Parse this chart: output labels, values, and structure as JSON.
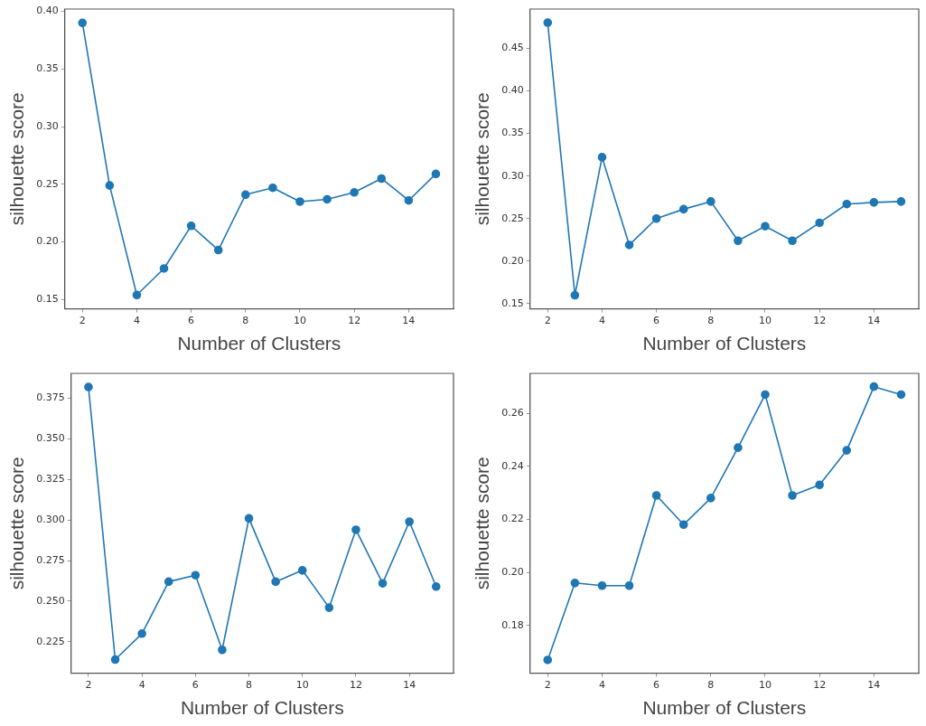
{
  "chart_data": [
    {
      "type": "line",
      "xlabel": "Number of Clusters",
      "ylabel": "silhouette score",
      "x": [
        2,
        3,
        4,
        5,
        6,
        7,
        8,
        9,
        10,
        11,
        12,
        13,
        14,
        15
      ],
      "values": [
        0.39,
        0.249,
        0.154,
        0.177,
        0.214,
        0.193,
        0.241,
        0.247,
        0.235,
        0.237,
        0.243,
        0.255,
        0.236,
        0.259
      ],
      "color": "#1f77b4",
      "marker": "circle",
      "xlim": [
        1.35,
        15.65
      ],
      "ylim": [
        0.142,
        0.402
      ],
      "xticks": [
        2,
        4,
        6,
        8,
        10,
        12,
        14
      ],
      "yticks": [
        0.15,
        {
          "value": 0.2,
          "label": "0.20"
        },
        0.25,
        {
          "value": 0.3,
          "label": "0.30"
        },
        0.35,
        {
          "value": 0.4,
          "label": "0.40"
        }
      ],
      "grid": false
    },
    {
      "type": "line",
      "xlabel": "Number of Clusters",
      "ylabel": "silhouette score",
      "x": [
        2,
        3,
        4,
        5,
        6,
        7,
        8,
        9,
        10,
        11,
        12,
        13,
        14,
        15
      ],
      "values": [
        0.48,
        0.16,
        0.322,
        0.219,
        0.25,
        0.261,
        0.27,
        0.224,
        0.241,
        0.224,
        0.245,
        0.267,
        0.269,
        0.27
      ],
      "color": "#1f77b4",
      "marker": "circle",
      "xlim": [
        1.35,
        15.65
      ],
      "ylim": [
        0.144,
        0.496
      ],
      "xticks": [
        2,
        4,
        6,
        8,
        10,
        12,
        14
      ],
      "yticks": [
        0.15,
        {
          "value": 0.2,
          "label": "0.20"
        },
        0.25,
        {
          "value": 0.3,
          "label": "0.30"
        },
        0.35,
        {
          "value": 0.4,
          "label": "0.40"
        },
        0.45
      ],
      "grid": false
    },
    {
      "type": "line",
      "xlabel": "Number of Clusters",
      "ylabel": "silhouette score",
      "x": [
        2,
        3,
        4,
        5,
        6,
        7,
        8,
        9,
        10,
        11,
        12,
        13,
        14,
        15
      ],
      "values": [
        0.382,
        0.214,
        0.23,
        0.262,
        0.266,
        0.22,
        0.301,
        0.262,
        0.269,
        0.246,
        0.294,
        0.261,
        0.299,
        0.259
      ],
      "color": "#1f77b4",
      "marker": "circle",
      "xlim": [
        1.35,
        15.65
      ],
      "ylim": [
        0.2056,
        0.3904
      ],
      "xticks": [
        2,
        4,
        6,
        8,
        10,
        12,
        14
      ],
      "yticks": [
        0.225,
        {
          "value": 0.25,
          "label": "0.250"
        },
        0.275,
        {
          "value": 0.3,
          "label": "0.300"
        },
        0.325,
        {
          "value": 0.35,
          "label": "0.350"
        },
        0.375
      ],
      "grid": false
    },
    {
      "type": "line",
      "xlabel": "Number of Clusters",
      "ylabel": "silhouette score",
      "x": [
        2,
        3,
        4,
        5,
        6,
        7,
        8,
        9,
        10,
        11,
        12,
        13,
        14,
        15
      ],
      "values": [
        0.167,
        0.196,
        0.195,
        0.195,
        0.229,
        0.218,
        0.228,
        0.247,
        0.267,
        0.229,
        0.233,
        0.246,
        0.27,
        0.267
      ],
      "color": "#1f77b4",
      "marker": "circle",
      "xlim": [
        1.35,
        15.65
      ],
      "ylim": [
        0.162,
        0.275
      ],
      "xticks": [
        2,
        4,
        6,
        8,
        10,
        12,
        14
      ],
      "yticks": [
        0.18,
        {
          "value": 0.2,
          "label": "0.20"
        },
        0.22,
        0.24,
        0.26
      ],
      "grid": false
    }
  ]
}
